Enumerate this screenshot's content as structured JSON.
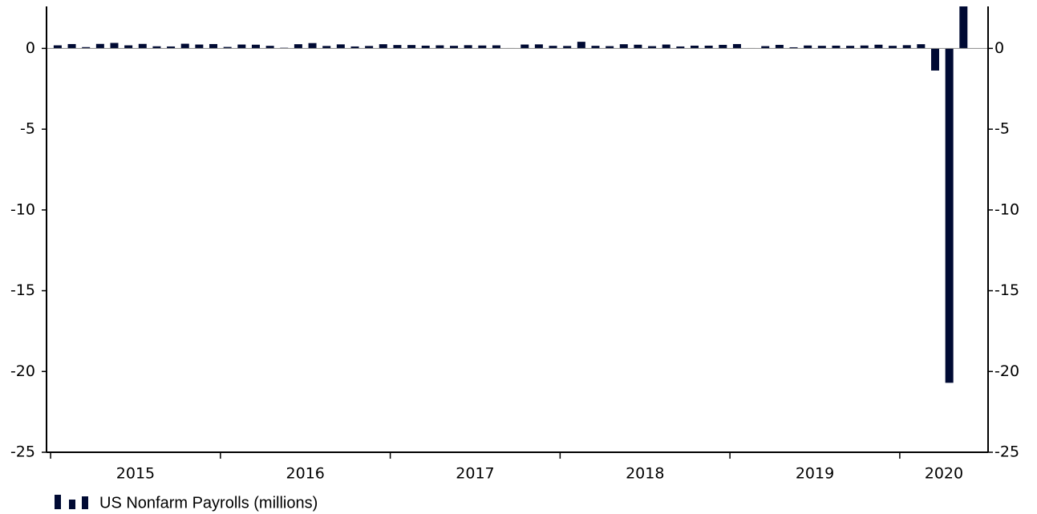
{
  "chart_data": {
    "type": "bar",
    "x": [
      2015.0417,
      2015.125,
      2015.2083,
      2015.2917,
      2015.375,
      2015.4583,
      2015.5417,
      2015.625,
      2015.7083,
      2015.7917,
      2015.875,
      2015.9583,
      2016.0417,
      2016.125,
      2016.2083,
      2016.2917,
      2016.375,
      2016.4583,
      2016.5417,
      2016.625,
      2016.7083,
      2016.7917,
      2016.875,
      2016.9583,
      2017.0417,
      2017.125,
      2017.2083,
      2017.2917,
      2017.375,
      2017.4583,
      2017.5417,
      2017.625,
      2017.7083,
      2017.7917,
      2017.875,
      2017.9583,
      2018.0417,
      2018.125,
      2018.2083,
      2018.2917,
      2018.375,
      2018.4583,
      2018.5417,
      2018.625,
      2018.7083,
      2018.7917,
      2018.875,
      2018.9583,
      2019.0417,
      2019.125,
      2019.2083,
      2019.2917,
      2019.375,
      2019.4583,
      2019.5417,
      2019.625,
      2019.7083,
      2019.7917,
      2019.875,
      2019.9583,
      2020.0417,
      2020.125,
      2020.2083,
      2020.2917,
      2020.375
    ],
    "series": [
      {
        "name": "US Nonfarm Payrolls (millions)",
        "color": "#000a33",
        "values": [
          0.19,
          0.27,
          0.08,
          0.28,
          0.34,
          0.19,
          0.28,
          0.13,
          0.12,
          0.29,
          0.24,
          0.27,
          0.09,
          0.24,
          0.23,
          0.16,
          0.04,
          0.26,
          0.33,
          0.15,
          0.25,
          0.12,
          0.15,
          0.26,
          0.21,
          0.21,
          0.17,
          0.19,
          0.16,
          0.2,
          0.18,
          0.19,
          0.02,
          0.24,
          0.25,
          0.16,
          0.15,
          0.41,
          0.16,
          0.14,
          0.26,
          0.23,
          0.14,
          0.24,
          0.12,
          0.17,
          0.17,
          0.22,
          0.27,
          0.02,
          0.14,
          0.22,
          0.07,
          0.18,
          0.16,
          0.17,
          0.16,
          0.18,
          0.23,
          0.16,
          0.2,
          0.26,
          -1.37,
          -20.7,
          2.7
        ]
      }
    ],
    "xlim": [
      2014.976,
      2020.52
    ],
    "xticks": [
      {
        "value": 2015.5,
        "label": "2015"
      },
      {
        "value": 2016.5,
        "label": "2016"
      },
      {
        "value": 2017.5,
        "label": "2017"
      },
      {
        "value": 2018.5,
        "label": "2018"
      },
      {
        "value": 2019.5,
        "label": "2019"
      },
      {
        "value": 2020.26,
        "label": "2020"
      }
    ],
    "ylim": [
      -25,
      2.6
    ],
    "yticks": [
      -25,
      -20,
      -15,
      -10,
      -5,
      0
    ],
    "y2lim": [
      -25,
      2.6
    ],
    "y2ticks": [
      -25,
      -20,
      -15,
      -10,
      -5,
      0
    ],
    "legend": "bottom-left"
  }
}
